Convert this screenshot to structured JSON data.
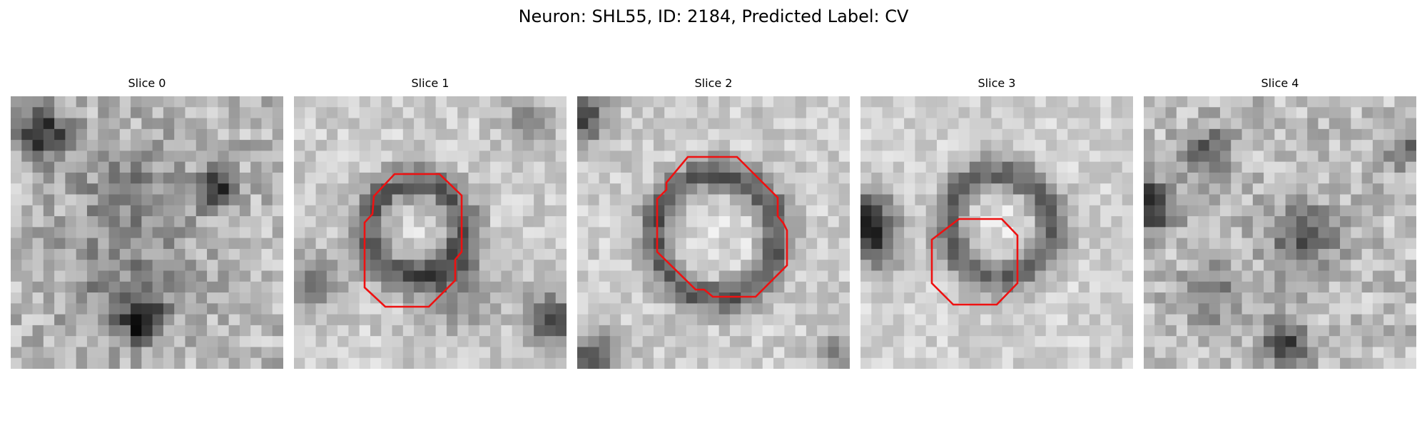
{
  "figure": {
    "title": "Neuron: SHL55, ID: 2184, Predicted Label: CV"
  },
  "panels": [
    {
      "title": "Slice 0",
      "has_outline": false
    },
    {
      "title": "Slice 1",
      "has_outline": true
    },
    {
      "title": "Slice 2",
      "has_outline": true
    },
    {
      "title": "Slice 3",
      "has_outline": true
    },
    {
      "title": "Slice 4",
      "has_outline": false
    }
  ],
  "colors": {
    "outline": "#ee1111",
    "background": "#ffffff"
  }
}
